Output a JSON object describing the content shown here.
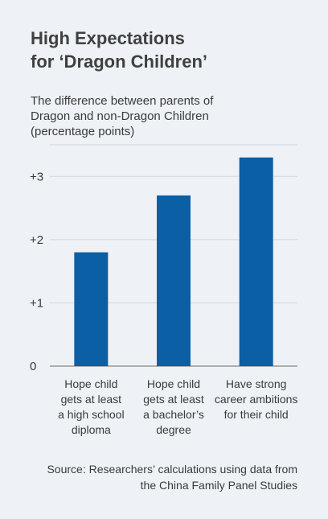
{
  "title_lines": [
    "High Expectations",
    "for ‘Dragon Children’"
  ],
  "subtitle_lines": [
    "The difference between parents of",
    "Dragon and non-Dragon Children",
    "(percentage points)"
  ],
  "source_lines": [
    "Source: Researchers’ calculations using data from",
    "the China Family Panel Studies"
  ],
  "colors": {
    "bar": "#0b5fa5",
    "grid": "#cfd6dd",
    "background": "#eef2f6"
  },
  "chart_data": {
    "type": "bar",
    "title": "High Expectations for ‘Dragon Children’",
    "subtitle": "The difference between parents of Dragon and non-Dragon Children (percentage points)",
    "category_label_lines": [
      [
        "Hope child",
        "gets at least",
        "a high school",
        "diploma"
      ],
      [
        "Hope child",
        "gets at least",
        "a bachelor’s",
        "degree"
      ],
      [
        "Have strong",
        "career ambitions",
        "for their child"
      ]
    ],
    "values": [
      1.8,
      2.7,
      3.3
    ],
    "yticks": [
      0,
      1,
      2,
      3
    ],
    "ytick_labels": [
      "0",
      "+1",
      "+2",
      "+3"
    ],
    "ylim": [
      0,
      3.5
    ],
    "grid": true
  }
}
